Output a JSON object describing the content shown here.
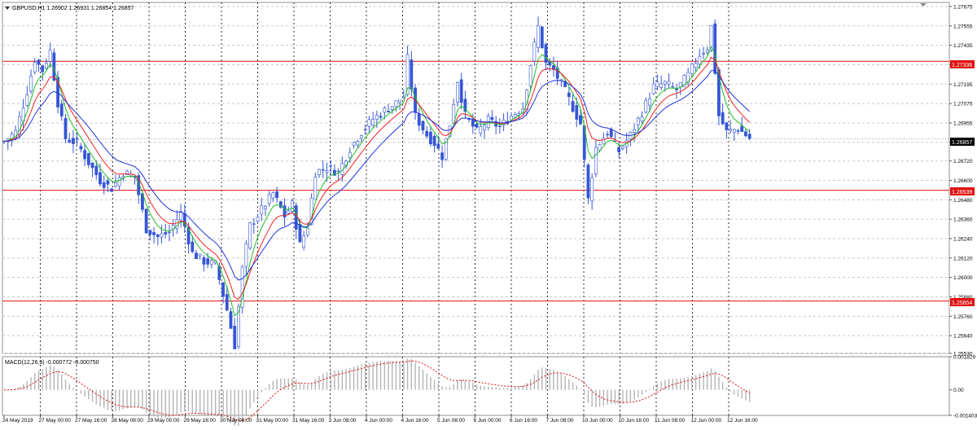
{
  "main_panel": {
    "header": "GBPUSD,H1  1.26902 1.26931 1.26854 1.26857",
    "price_ticks": [
      "1.27675",
      "1.27555",
      "1.27435",
      "1.27315",
      "1.27195",
      "1.27075",
      "1.26955",
      "1.26835",
      "1.26720",
      "1.26600",
      "1.26480",
      "1.26360",
      "1.26240",
      "1.26120",
      "1.26000",
      "1.25880",
      "1.25760",
      "1.25640",
      "1.25530"
    ],
    "current_price_label": "1.26857",
    "level_labels": [
      "1.27336",
      "1.26539",
      "1.25854"
    ],
    "colors": {
      "candles": "#3556d6",
      "ma_fast": "#22c022",
      "ma_mid": "#ee2222",
      "ma_slow": "#2233dd",
      "level": "#e01010",
      "grid": "#c8c8c8",
      "vgrid": "#000000"
    }
  },
  "macd_panel": {
    "header": "MACD(12,26,9) -0.000772 -0.000750",
    "ticks": [
      "0.001829",
      "0.00",
      "-0.001403"
    ],
    "colors": {
      "histogram": "#b4b4b4",
      "signal": "#e01010"
    }
  },
  "time_axis": [
    "24 May 2019",
    "27 May 00:00",
    "27 May 16:00",
    "28 May 08:00",
    "29 May 00:00",
    "29 May 16:00",
    "30 May 08:00",
    "31 May 00:00",
    "31 May 16:00",
    "3 Jun 08:00",
    "4 Jun 00:00",
    "4 Jun 16:00",
    "5 Jun 08:00",
    "6 Jun 00:00",
    "6 Jun 16:00",
    "7 Jun 08:00",
    "10 Jun 00:00",
    "10 Jun 16:00",
    "11 Jun 08:00",
    "12 Jun 00:00",
    "12 Jun 16:00"
  ],
  "chart_data": {
    "type": "candlestick",
    "symbol": "GBPUSD",
    "timeframe": "H1",
    "ohlc_last": {
      "open": 1.26902,
      "high": 1.26931,
      "low": 1.26854,
      "close": 1.26857
    },
    "ylim": [
      1.2553,
      1.277
    ],
    "horizontal_levels": [
      1.27336,
      1.26539,
      1.25854
    ],
    "close_path": [
      [
        0,
        1.2684
      ],
      [
        3,
        1.269
      ],
      [
        6,
        1.2715
      ],
      [
        8,
        1.2735
      ],
      [
        10,
        1.2728
      ],
      [
        12,
        1.274
      ],
      [
        14,
        1.2708
      ],
      [
        16,
        1.2686
      ],
      [
        19,
        1.2683
      ],
      [
        22,
        1.2671
      ],
      [
        25,
        1.266
      ],
      [
        28,
        1.2655
      ],
      [
        31,
        1.2665
      ],
      [
        34,
        1.2662
      ],
      [
        37,
        1.263
      ],
      [
        40,
        1.2625
      ],
      [
        43,
        1.2628
      ],
      [
        46,
        1.264
      ],
      [
        49,
        1.2615
      ],
      [
        52,
        1.261
      ],
      [
        55,
        1.2608
      ],
      [
        58,
        1.258
      ],
      [
        60,
        1.2558
      ],
      [
        62,
        1.2605
      ],
      [
        64,
        1.2632
      ],
      [
        67,
        1.2642
      ],
      [
        70,
        1.2652
      ],
      [
        73,
        1.2638
      ],
      [
        75,
        1.2645
      ],
      [
        77,
        1.262
      ],
      [
        79,
        1.2632
      ],
      [
        81,
        1.2665
      ],
      [
        84,
        1.2668
      ],
      [
        87,
        1.2665
      ],
      [
        90,
        1.268
      ],
      [
        93,
        1.269
      ],
      [
        96,
        1.2698
      ],
      [
        99,
        1.2703
      ],
      [
        102,
        1.2708
      ],
      [
        104,
        1.2712
      ],
      [
        105,
        1.2735
      ],
      [
        107,
        1.27
      ],
      [
        110,
        1.2688
      ],
      [
        112,
        1.2683
      ],
      [
        114,
        1.2675
      ],
      [
        116,
        1.2695
      ],
      [
        118,
        1.2722
      ],
      [
        120,
        1.27
      ],
      [
        123,
        1.269
      ],
      [
        126,
        1.2697
      ],
      [
        129,
        1.2693
      ],
      [
        132,
        1.27
      ],
      [
        135,
        1.2705
      ],
      [
        137,
        1.2732
      ],
      [
        139,
        1.2755
      ],
      [
        141,
        1.2732
      ],
      [
        143,
        1.2728
      ],
      [
        146,
        1.2715
      ],
      [
        148,
        1.2705
      ],
      [
        150,
        1.2695
      ],
      [
        152,
        1.2648
      ],
      [
        154,
        1.268
      ],
      [
        157,
        1.269
      ],
      [
        160,
        1.2678
      ],
      [
        163,
        1.2688
      ],
      [
        166,
        1.2702
      ],
      [
        169,
        1.2718
      ],
      [
        172,
        1.272
      ],
      [
        175,
        1.2716
      ],
      [
        178,
        1.2725
      ],
      [
        181,
        1.2738
      ],
      [
        183,
        1.2742
      ],
      [
        184,
        1.2755
      ],
      [
        186,
        1.27
      ],
      [
        188,
        1.269
      ],
      [
        191,
        1.2692
      ],
      [
        194,
        1.2686
      ]
    ]
  }
}
